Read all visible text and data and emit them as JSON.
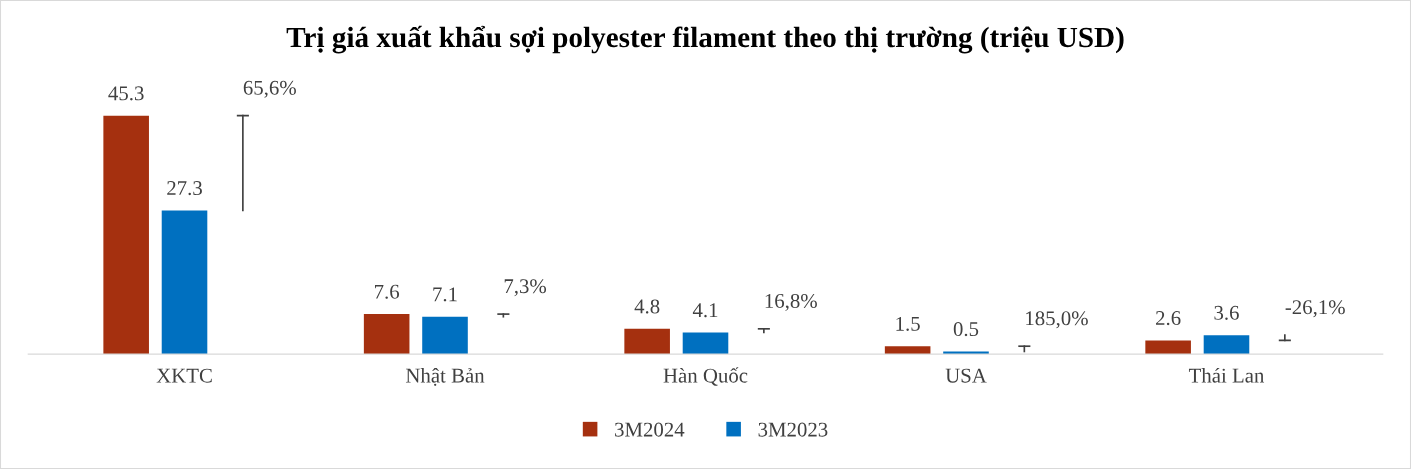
{
  "chart_data": {
    "type": "bar",
    "title": "Trị giá xuất khẩu sợi polyester filament theo thị trường (triệu USD)",
    "categories": [
      "XKTC",
      "Nhật Bản",
      "Hàn Quốc",
      "USA",
      "Thái Lan"
    ],
    "series": [
      {
        "name": "3M2024",
        "color": "#a5300f",
        "values": [
          45.3,
          7.6,
          4.8,
          1.5,
          2.6
        ]
      },
      {
        "name": "3M2023",
        "color": "#0070c0",
        "values": [
          27.3,
          7.1,
          4.1,
          0.5,
          3.6
        ]
      }
    ],
    "annotations": [
      "65,6%",
      "7,3%",
      "16,8%",
      "185,0%",
      "-26,1%"
    ],
    "data_labels": true,
    "legend": "bottom"
  }
}
